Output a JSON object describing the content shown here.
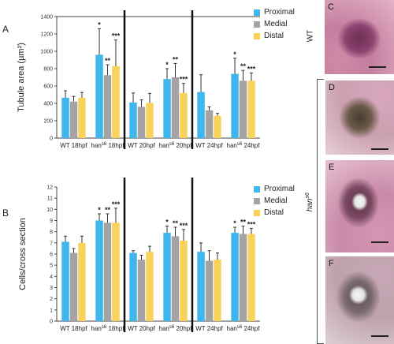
{
  "panels": {
    "a_letter": "A",
    "b_letter": "B"
  },
  "legend": {
    "items": [
      {
        "label": "Proximal",
        "color": "#3fb6ec"
      },
      {
        "label": "Medial",
        "color": "#a3a3a3"
      },
      {
        "label": "Distal",
        "color": "#f7d35a"
      }
    ]
  },
  "image_panels": {
    "wt_label": "WT",
    "mutant_label": "han",
    "mutant_label_sup": "s6",
    "letters": [
      "C",
      "D",
      "E",
      "F"
    ]
  },
  "chart_data": [
    {
      "type": "bar",
      "ylabel": "Tubule area (µm²)",
      "ylim": [
        0,
        1400
      ],
      "yticks": [
        0,
        200,
        400,
        600,
        800,
        1000,
        1200,
        1400
      ],
      "categories": [
        "WT 18hpf",
        "han{s6} 18hpf",
        "WT 20hpf",
        "han{s6} 20hpf",
        "WT 24hpf",
        "han{s6} 24hpf"
      ],
      "series": [
        {
          "name": "Proximal",
          "values": [
            465,
            960,
            410,
            680,
            530,
            740
          ],
          "errors": [
            80,
            300,
            110,
            120,
            200,
            180
          ]
        },
        {
          "name": "Medial",
          "values": [
            420,
            725,
            360,
            700,
            320,
            660
          ],
          "errors": [
            60,
            120,
            80,
            160,
            40,
            120
          ]
        },
        {
          "name": "Distal",
          "values": [
            465,
            830,
            405,
            520,
            255,
            660
          ],
          "errors": [
            60,
            300,
            110,
            110,
            30,
            90
          ]
        }
      ],
      "significance": [
        [
          "",
          "*",
          "",
          "*",
          "",
          "*"
        ],
        [
          "",
          "**",
          "",
          "**",
          "",
          "**"
        ],
        [
          "",
          "***",
          "",
          "***",
          "",
          "***"
        ]
      ]
    },
    {
      "type": "bar",
      "ylabel": "Cells/cross section",
      "ylim": [
        0,
        12
      ],
      "yticks": [
        0,
        1,
        2,
        3,
        4,
        5,
        6,
        7,
        8,
        9,
        10,
        11,
        12
      ],
      "categories": [
        "WT 18hpf",
        "han{s6} 18hpf",
        "WT 20hpf",
        "han{s6} 20hpf",
        "WT 24hpf",
        "han{s6} 24hpf"
      ],
      "series": [
        {
          "name": "Proximal",
          "values": [
            7.1,
            9.0,
            6.1,
            7.9,
            6.2,
            7.9
          ],
          "errors": [
            0.5,
            0.6,
            0.2,
            0.6,
            0.8,
            0.5
          ]
        },
        {
          "name": "Medial",
          "values": [
            6.1,
            8.8,
            5.5,
            7.6,
            5.4,
            7.8
          ],
          "errors": [
            0.4,
            0.8,
            0.4,
            0.8,
            0.9,
            0.7
          ]
        },
        {
          "name": "Distal",
          "values": [
            7.0,
            8.8,
            6.2,
            7.2,
            5.5,
            7.8
          ],
          "errors": [
            0.6,
            1.3,
            0.5,
            1.0,
            0.6,
            0.5
          ]
        }
      ],
      "significance": [
        [
          "",
          "*",
          "",
          "*",
          "",
          "*"
        ],
        [
          "",
          "**",
          "",
          "**",
          "",
          "**"
        ],
        [
          "",
          "***",
          "",
          "***",
          "",
          "***"
        ]
      ]
    }
  ]
}
